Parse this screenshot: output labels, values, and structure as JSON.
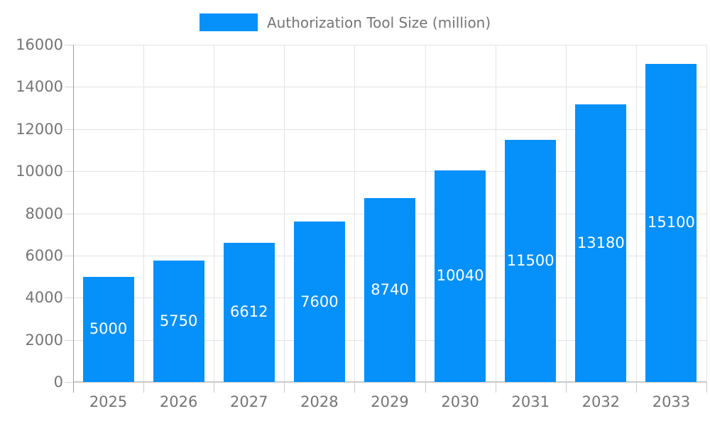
{
  "legend": {
    "label": "Authorization Tool Size (million)"
  },
  "chart_data": {
    "type": "bar",
    "title": "Authorization Tool Size (million)",
    "categories": [
      "2025",
      "2026",
      "2027",
      "2028",
      "2029",
      "2030",
      "2031",
      "2032",
      "2033"
    ],
    "values": [
      5000,
      5750,
      6612,
      7600,
      8740,
      10040,
      11500,
      13180,
      15100
    ],
    "yticks": [
      0,
      2000,
      4000,
      6000,
      8000,
      10000,
      12000,
      14000,
      16000
    ],
    "ylim": [
      0,
      16000
    ],
    "xlabel": "",
    "ylabel": "",
    "grid": true,
    "legend_position": "top",
    "colors": {
      "bar": "#0590FA",
      "bar_label": "#FFFFFF",
      "tick_label": "#757575",
      "grid": "#E3E3E3",
      "axis": "#9E9E9E"
    }
  }
}
